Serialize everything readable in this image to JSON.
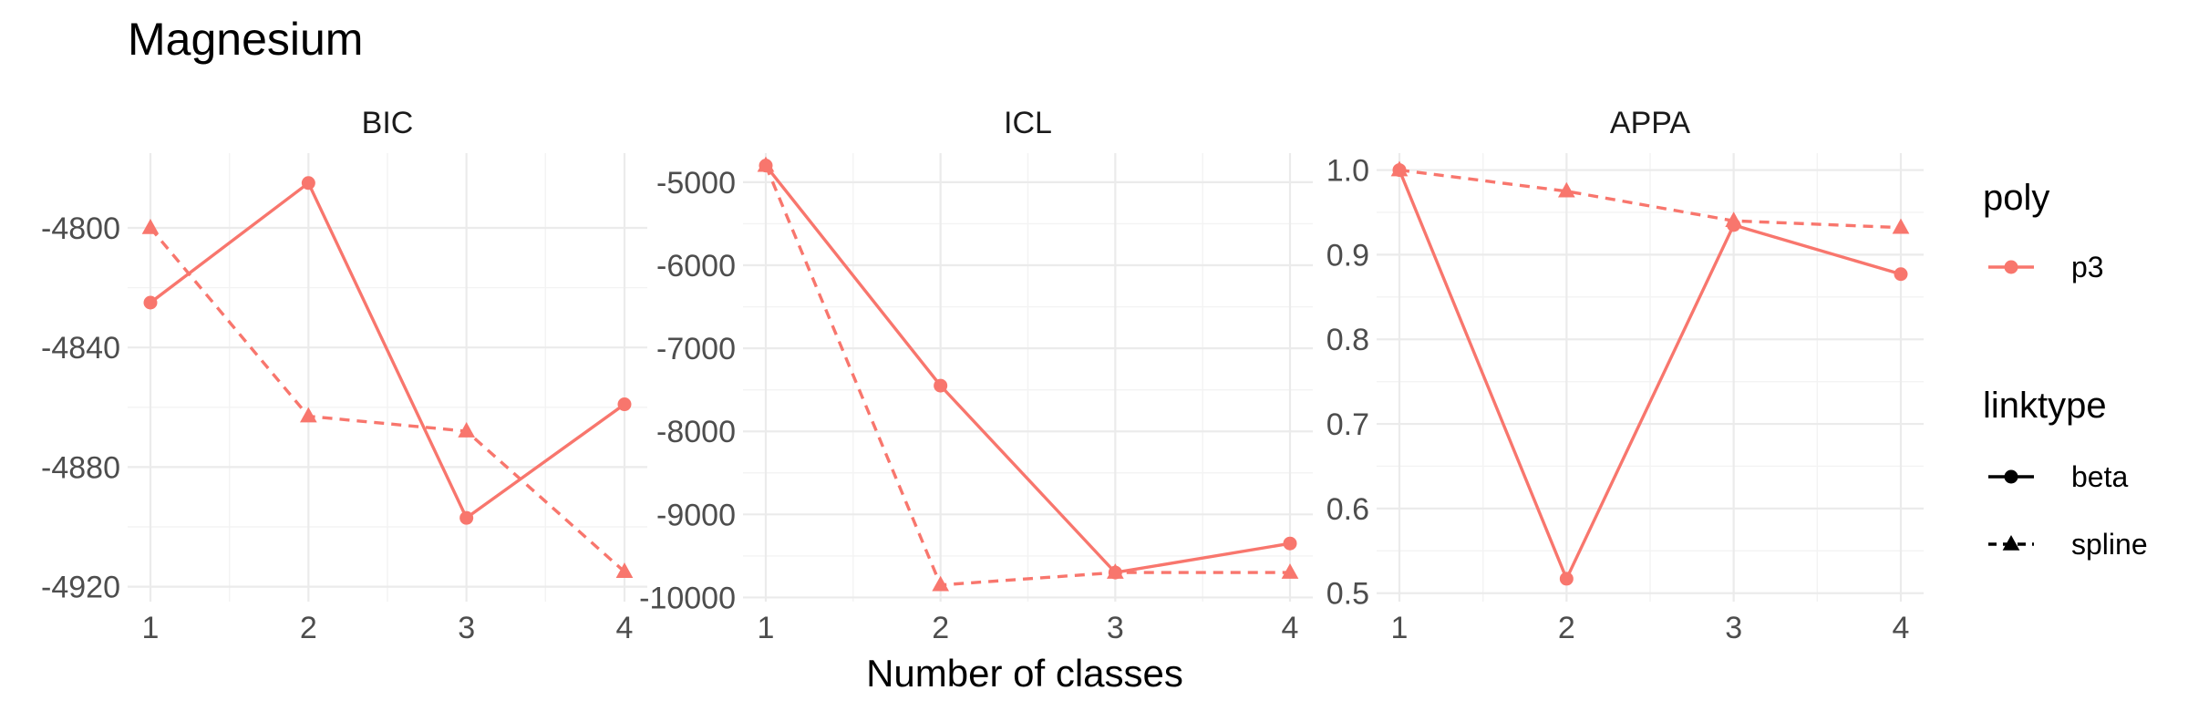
{
  "title": "Magnesium",
  "chart_data": {
    "type": "line",
    "title": "Magnesium",
    "xlabel": "Number of classes",
    "x": [
      1,
      2,
      3,
      4
    ],
    "facets": [
      {
        "name": "BIC",
        "ylim": [
          -4925,
          -4775
        ],
        "yticks": [
          -4800,
          -4840,
          -4880,
          -4920
        ],
        "series": [
          {
            "poly": "p3",
            "linktype": "beta",
            "values": [
              -4825,
              -4785,
              -4897,
              -4859
            ]
          },
          {
            "poly": "p3",
            "linktype": "spline",
            "values": [
              -4800,
              -4863,
              -4868,
              -4915
            ]
          }
        ]
      },
      {
        "name": "ICL",
        "ylim": [
          -10050,
          -4650
        ],
        "yticks": [
          -5000,
          -6000,
          -7000,
          -8000,
          -9000,
          -10000
        ],
        "series": [
          {
            "poly": "p3",
            "linktype": "beta",
            "values": [
              -4800,
              -7450,
              -9700,
              -9350
            ]
          },
          {
            "poly": "p3",
            "linktype": "spline",
            "values": [
              -4800,
              -9850,
              -9700,
              -9700
            ]
          }
        ]
      },
      {
        "name": "APPA",
        "ylim": [
          0.49,
          1.02
        ],
        "yticks": [
          1.0,
          0.9,
          0.8,
          0.7,
          0.6,
          0.5
        ],
        "ytick_labels": [
          "1.0",
          "0.9",
          "0.8",
          "0.7",
          "0.6",
          "0.5"
        ],
        "series": [
          {
            "poly": "p3",
            "linktype": "beta",
            "values": [
              1.0,
              0.517,
              0.935,
              0.877
            ]
          },
          {
            "poly": "p3",
            "linktype": "spline",
            "values": [
              1.0,
              0.975,
              0.94,
              0.932
            ]
          }
        ]
      }
    ],
    "colors": {
      "p3": "#F8766D"
    },
    "grid": true,
    "legend": {
      "placement": "right",
      "groups": [
        {
          "title": "poly",
          "entries": [
            {
              "label": "p3",
              "shape": "circle",
              "line": "solid"
            }
          ]
        },
        {
          "title": "linktype",
          "entries": [
            {
              "label": "beta",
              "shape": "circle",
              "line": "solid"
            },
            {
              "label": "spline",
              "shape": "triangle",
              "line": "dashed"
            }
          ]
        }
      ]
    }
  }
}
